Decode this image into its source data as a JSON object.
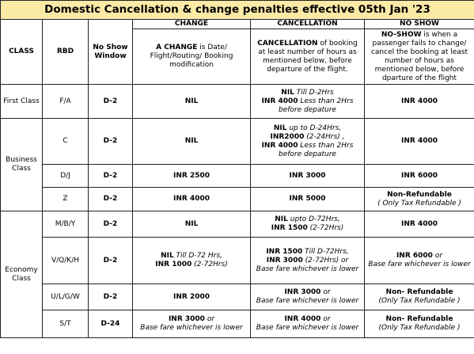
{
  "title": "Domestic Cancellation & change penalties effective 05th Jan '23",
  "headers": {
    "class": "CLASS",
    "rbd": "RBD",
    "no_show_window": "No Show Window",
    "change": "CHANGE",
    "cancellation": "CANCELLATION",
    "no_show": "NO SHOW"
  },
  "descriptions": {
    "change": {
      "term": "A CHANGE",
      "rest": " is Date/ Flight/Routing/ Booking modification"
    },
    "cancellation": {
      "term": "CANCELLATION",
      "rest": " of booking at least number of hours as mentioned below, before departure of the flight."
    },
    "no_show": {
      "term": "NO-SHOW",
      "rest": " is when a passenger fails to change/ cancel the booking at least number of hours as mentioned below, before dparture of the flight"
    }
  },
  "classes": {
    "first": "First Class",
    "business": "Business Class",
    "economy": "Economy Class"
  },
  "rows": [
    {
      "rbd": "F/A",
      "window": "D-2",
      "change": "NIL",
      "cancellation": [
        {
          "bold": "NIL",
          "italic": " Till D-2Hrs"
        },
        {
          "bold": "INR 4000",
          "italic": " Less than 2Hrs"
        },
        {
          "bold": "",
          "italic": "before depature"
        }
      ],
      "no_show": [
        {
          "bold": "INR 4000",
          "italic": ""
        }
      ]
    },
    {
      "rbd": "C",
      "window": "D-2",
      "change": "NIL",
      "cancellation": [
        {
          "bold": "NIL",
          "italic": " up to D-24Hrs,"
        },
        {
          "bold": "INR2000",
          "italic": " (2-24Hrs) ,"
        },
        {
          "bold": "INR 4000",
          "italic": " Less than 2Hrs"
        },
        {
          "bold": "",
          "italic": "before depature"
        }
      ],
      "no_show": [
        {
          "bold": "INR 4000",
          "italic": ""
        }
      ]
    },
    {
      "rbd": "D/J",
      "window": "D-2",
      "change": "INR 2500",
      "cancellation": [
        {
          "bold": "INR 3000",
          "italic": ""
        }
      ],
      "no_show": [
        {
          "bold": "INR 6000",
          "italic": ""
        }
      ]
    },
    {
      "rbd": "Z",
      "window": "D-2",
      "change": "INR 4000",
      "cancellation": [
        {
          "bold": "INR 5000",
          "italic": ""
        }
      ],
      "no_show": [
        {
          "bold": "Non-Refundable",
          "italic": ""
        },
        {
          "bold": "",
          "italic": "( Only Tax Refundable )"
        }
      ]
    },
    {
      "rbd": "M/B/Y",
      "window": "D-2",
      "change": "NIL",
      "cancellation": [
        {
          "bold": "NIL",
          "italic": " upto D-72Hrs,"
        },
        {
          "bold": "INR 1500",
          "italic": " (2-72Hrs)"
        }
      ],
      "no_show": [
        {
          "bold": "INR 4000",
          "italic": ""
        }
      ]
    },
    {
      "rbd": "V/Q/K/H",
      "window": "D-2",
      "change": [
        {
          "bold": "NIL",
          "italic": " Till D-72 Hrs,"
        },
        {
          "bold": "INR 1000",
          "italic": " (2-72Hrs)"
        }
      ],
      "cancellation": [
        {
          "bold": "INR 1500",
          "italic": " Till D-72Hrs,"
        },
        {
          "bold": "INR 3000",
          "italic": " (2-72Hrs) or"
        },
        {
          "bold": "",
          "italic": "Base fare whichever is lower"
        }
      ],
      "no_show": [
        {
          "bold": "INR 6000",
          "italic": " or"
        },
        {
          "bold": "",
          "italic": "Base fare whichever is lower"
        }
      ]
    },
    {
      "rbd": "U/L/G/W",
      "window": "D-2",
      "change": "INR 2000",
      "cancellation": [
        {
          "bold": "INR 3000",
          "italic": " or"
        },
        {
          "bold": "",
          "italic": "Base fare whichever is lower"
        }
      ],
      "no_show": [
        {
          "bold": "Non- Refundable",
          "italic": ""
        },
        {
          "bold": "",
          "italic": "(Only Tax Refundable )"
        }
      ]
    },
    {
      "rbd": "S/T",
      "window": "D-24",
      "change": [
        {
          "bold": "INR 3000",
          "italic": " or"
        },
        {
          "bold": "",
          "italic": "Base fare whichever is lower"
        }
      ],
      "cancellation": [
        {
          "bold": "INR 4000",
          "italic": " or"
        },
        {
          "bold": "",
          "italic": "Base fare whichever is lower"
        }
      ],
      "no_show": [
        {
          "bold": "Non- Refundable",
          "italic": ""
        },
        {
          "bold": "",
          "italic": "(Only Tax Refundable )"
        }
      ]
    }
  ]
}
